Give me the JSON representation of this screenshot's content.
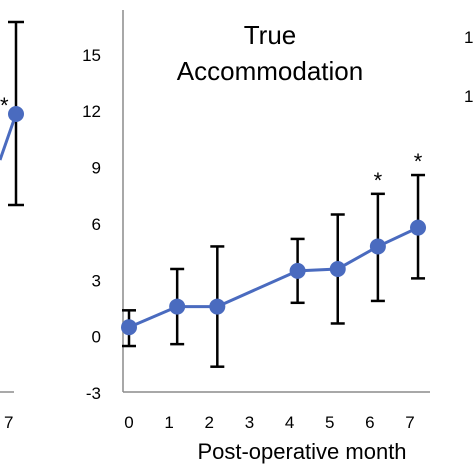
{
  "chart_data": {
    "type": "line",
    "title_lines": [
      "True",
      "Accommodation"
    ],
    "xlabel": "Post-operative month",
    "ylabel": "",
    "xlim": [
      0,
      7
    ],
    "ylim": [
      -3,
      16
    ],
    "x_ticks": [
      "0",
      "1",
      "2",
      "3",
      "4",
      "5",
      "6",
      "7"
    ],
    "y_ticks": [
      "-3",
      "0",
      "3",
      "6",
      "9",
      "12",
      "15"
    ],
    "grid": false,
    "series": [
      {
        "color": "#4a6bbf",
        "x": [
          0,
          1.2,
          2.2,
          4.2,
          5.2,
          6.2,
          7.2
        ],
        "y": [
          0.5,
          1.6,
          1.6,
          3.5,
          3.6,
          4.8,
          5.8
        ],
        "err_low": [
          -0.5,
          -0.4,
          -1.6,
          1.8,
          0.7,
          1.9,
          3.1
        ],
        "err_high": [
          1.4,
          3.6,
          4.8,
          5.2,
          6.5,
          7.6,
          8.6
        ],
        "significant": [
          false,
          false,
          false,
          false,
          false,
          true,
          true
        ]
      }
    ],
    "significance_marker": "*"
  },
  "left_panel_fragment": {
    "color": "#4a6bbf",
    "x_tick_label": "7",
    "marker": "*"
  },
  "right_panel_fragment": {
    "tick_labels": [
      "1",
      "1"
    ]
  }
}
